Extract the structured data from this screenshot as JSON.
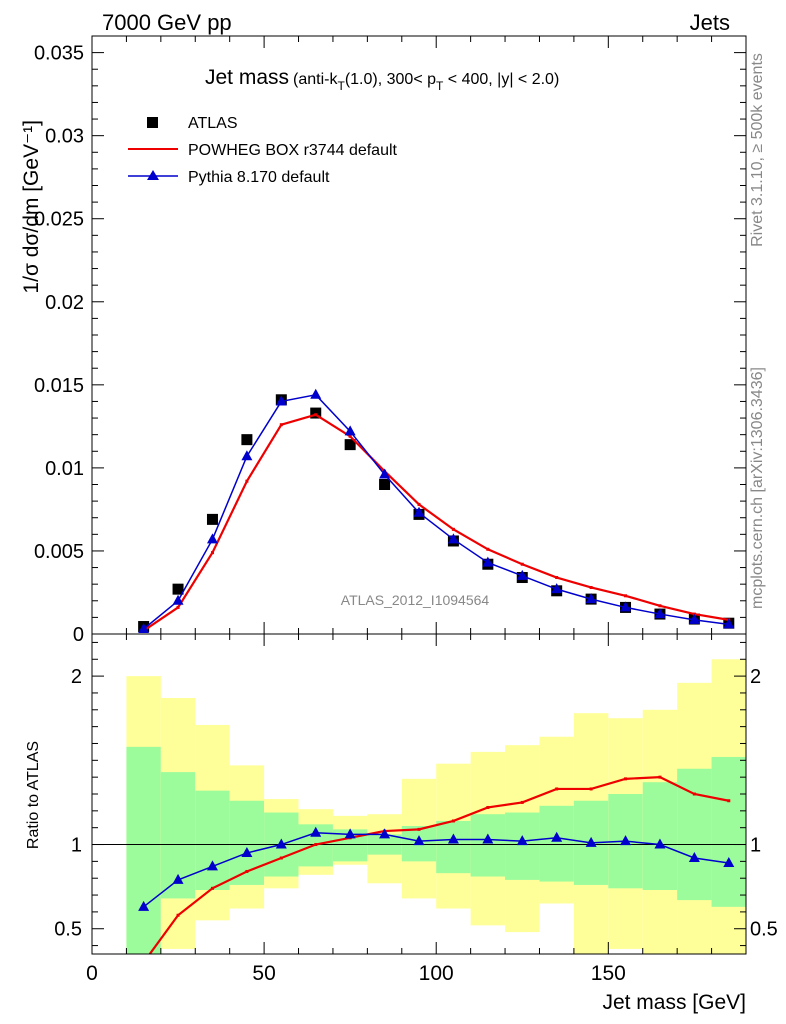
{
  "header": {
    "left": "7000 GeV pp",
    "right": "Jets"
  },
  "side_labels": {
    "rivet": "Rivet 3.1.10, ≥ 500k events",
    "mcplots": "mcplots.cern.ch [arXiv:1306.3436]"
  },
  "chart_data": [
    {
      "type": "scatter",
      "panel": "main",
      "title_main": "Jet mass",
      "title_detail": "(anti-k",
      "title_sub1": "T",
      "title_detail2": "(1.0), 300< p",
      "title_sub2": "T",
      "title_detail3": " < 400, |y| < 2.0)",
      "ylabel": "1/σ dσ/dm [GeV⁻¹]",
      "xlim": [
        0,
        190
      ],
      "ylim": [
        0,
        0.036
      ],
      "x_ticks": [
        0,
        50,
        100,
        150
      ],
      "y_ticks": [
        0,
        0.005,
        0.01,
        0.015,
        0.02,
        0.025,
        0.03,
        0.035
      ],
      "y_tick_labels": [
        "0",
        "0.005",
        "0.01",
        "0.015",
        "0.02",
        "0.025",
        "0.03",
        "0.035"
      ],
      "analysis_label": "ATLAS_2012_I1094564",
      "x": [
        15,
        25,
        35,
        45,
        55,
        65,
        75,
        85,
        95,
        105,
        115,
        125,
        135,
        145,
        155,
        165,
        175,
        185
      ],
      "series": [
        {
          "name": "ATLAS",
          "style": "markers",
          "color": "#000000",
          "values": [
            0.00045,
            0.0027,
            0.0069,
            0.0117,
            0.0141,
            0.0133,
            0.0114,
            0.009,
            0.0072,
            0.0056,
            0.0042,
            0.0034,
            0.0026,
            0.0021,
            0.0016,
            0.0012,
            0.0009,
            0.00065
          ]
        },
        {
          "name": "POWHEG BOX r3744 default",
          "style": "line",
          "color": "#ee0000",
          "values": [
            0.0002,
            0.0016,
            0.0049,
            0.0092,
            0.0126,
            0.0132,
            0.0119,
            0.0098,
            0.0078,
            0.0063,
            0.0051,
            0.0042,
            0.0034,
            0.0028,
            0.0023,
            0.0017,
            0.0012,
            0.00085
          ]
        },
        {
          "name": "Pythia 8.170 default",
          "style": "line-triangles",
          "color": "#0000cc",
          "values": [
            0.0003,
            0.002,
            0.0057,
            0.0107,
            0.014,
            0.0144,
            0.0122,
            0.0096,
            0.0073,
            0.0057,
            0.0043,
            0.0035,
            0.0027,
            0.0021,
            0.0016,
            0.0012,
            0.00085,
            0.00058
          ]
        }
      ]
    },
    {
      "type": "line",
      "panel": "ratio",
      "ylabel": "Ratio to ATLAS",
      "xlabel": "Jet mass [GeV]",
      "xlim": [
        0,
        190
      ],
      "ylim": [
        0.35,
        2.25
      ],
      "x_ticks": [
        0,
        50,
        100,
        150
      ],
      "y_ticks": [
        0.5,
        1,
        2
      ],
      "y_tick_labels": [
        "0.5",
        "1",
        "2"
      ],
      "reference": 1,
      "bin_edges": [
        10,
        20,
        30,
        40,
        50,
        60,
        70,
        80,
        90,
        100,
        110,
        120,
        130,
        140,
        150,
        160,
        170,
        180,
        190
      ],
      "band_green": {
        "color": "#9cfc9c",
        "lower": [
          0.35,
          0.68,
          0.73,
          0.76,
          0.81,
          0.87,
          0.9,
          0.94,
          0.9,
          0.83,
          0.81,
          0.79,
          0.78,
          0.76,
          0.74,
          0.73,
          0.67,
          0.63,
          0.55
        ],
        "upper": [
          1.58,
          1.43,
          1.32,
          1.26,
          1.19,
          1.12,
          1.09,
          1.06,
          1.11,
          1.14,
          1.18,
          1.19,
          1.23,
          1.26,
          1.3,
          1.37,
          1.45,
          1.52,
          1.65
        ]
      },
      "band_yellow": {
        "color": "#ffff99",
        "lower": [
          0.35,
          0.38,
          0.55,
          0.62,
          0.74,
          0.82,
          0.88,
          0.77,
          0.68,
          0.62,
          0.52,
          0.48,
          0.65,
          0.35,
          0.38,
          0.35,
          0.35,
          0.35
        ],
        "upper": [
          2.0,
          1.87,
          1.71,
          1.47,
          1.27,
          1.21,
          1.17,
          1.18,
          1.39,
          1.48,
          1.55,
          1.59,
          1.64,
          1.78,
          1.75,
          1.8,
          1.96,
          2.1
        ]
      },
      "x": [
        15,
        25,
        35,
        45,
        55,
        65,
        75,
        85,
        95,
        105,
        115,
        125,
        135,
        145,
        155,
        165,
        175,
        185
      ],
      "series": [
        {
          "name": "POWHEG BOX r3744 default",
          "color": "#ee0000",
          "values": [
            0.3,
            0.58,
            0.74,
            0.84,
            0.92,
            1.0,
            1.04,
            1.08,
            1.09,
            1.14,
            1.22,
            1.25,
            1.33,
            1.33,
            1.39,
            1.4,
            1.3,
            1.26
          ]
        },
        {
          "name": "Pythia 8.170 default",
          "color": "#0000cc",
          "values": [
            0.63,
            0.79,
            0.87,
            0.95,
            1.0,
            1.07,
            1.06,
            1.06,
            1.02,
            1.03,
            1.03,
            1.02,
            1.04,
            1.01,
            1.02,
            1.0,
            0.92,
            0.89
          ]
        }
      ]
    }
  ]
}
